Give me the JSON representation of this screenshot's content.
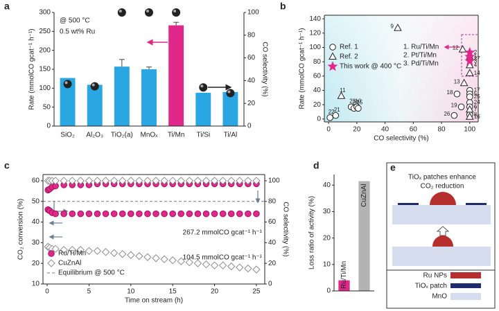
{
  "chart_data": [
    {
      "label": "a",
      "type": "bar",
      "categories": [
        "SiO₂",
        "Al₂O₃",
        "TiO₂(a)",
        "MnOₓ",
        "Ti/Mn",
        "Ti/Si",
        "Ti/Al"
      ],
      "category_label_colors": [
        "#222222",
        "#222222",
        "#222222",
        "#222222",
        "#e0288a",
        "#222222",
        "#222222"
      ],
      "series": [
        {
          "values": [
            127,
            109,
            157,
            150,
            266,
            88,
            90
          ],
          "errors": [
            0,
            0,
            19,
            6,
            8,
            0,
            0
          ],
          "colors": [
            "#2aa7e2",
            "#2aa7e2",
            "#2aa7e2",
            "#2aa7e2",
            "#e0288a",
            "#2aa7e2",
            "#2aa7e2"
          ]
        },
        {
          "type": "scatter",
          "axis": "y2",
          "values": [
            37,
            35,
            100,
            100,
            100,
            34,
            29
          ],
          "color": "#222222"
        }
      ],
      "ylim": [
        0,
        300
      ],
      "yticks": [
        0,
        50,
        100,
        150,
        200,
        250,
        300
      ],
      "y2lim": [
        0,
        100
      ],
      "y2ticks": [
        0,
        20,
        40,
        60,
        80,
        100
      ],
      "ylabel": "Rate (mmolCO gcat⁻¹ h⁻¹)",
      "y2label": "CO selectivity (%)",
      "annotations": [
        {
          "text": "@ 500 °C"
        },
        {
          "text": "0.5 wt% Ru"
        }
      ]
    },
    {
      "label": "b",
      "type": "scatter",
      "series": [
        {
          "name": "Ref. 1",
          "marker": "circle",
          "filled": false,
          "color": "#222222",
          "x": [
            1,
            5,
            16,
            18,
            20,
            21,
            91,
            94,
            89,
            100,
            100,
            100,
            100,
            100,
            100,
            100
          ],
          "values": [
            2,
            5,
            17,
            15,
            17,
            15,
            35,
            17,
            5,
            40,
            35,
            31,
            23,
            17,
            6,
            84
          ],
          "point_labels": [
            "22",
            "21",
            "23",
            "20",
            "10",
            "15",
            "18",
            "19",
            "26",
            "17",
            "5",
            "25",
            "24",
            "6",
            "8",
            "27"
          ]
        },
        {
          "name": "Ref. 2",
          "marker": "triangle",
          "filled": false,
          "color": "#222222",
          "x": [
            9,
            49,
            95,
            96,
            100,
            100,
            100,
            100
          ],
          "values": [
            32,
            127,
            97,
            50,
            64,
            75,
            13,
            3
          ],
          "point_labels": [
            "11",
            "9",
            "12",
            "13",
            "14",
            "4",
            "7",
            "16"
          ]
        },
        {
          "name": "This work @ 400 °C",
          "marker": "star",
          "filled": true,
          "color": "#e0288a",
          "x": [
            100,
            100,
            100
          ],
          "values": [
            93,
            87,
            81
          ],
          "point_labels": [
            "2",
            "1",
            "3"
          ]
        }
      ],
      "xlim": [
        -3,
        106
      ],
      "xticks": [
        0,
        20,
        40,
        60,
        80,
        100
      ],
      "ylim": [
        -4,
        145
      ],
      "yticks": [
        0,
        20,
        40,
        60,
        80,
        100,
        120,
        140
      ],
      "xlabel": "CO selectivity (%)",
      "ylabel": "Rate (mmolCO gcat⁻¹ h⁻¹)",
      "legend": "center left",
      "annotations": [
        {
          "text": "1. Ru/Ti/Mn",
          "color": "#e0288a"
        },
        {
          "text": "2. Pt/Ti/Mn",
          "color": "#e0288a"
        },
        {
          "text": "3. Pd/Ti/Mn",
          "color": "#e0288a"
        }
      ]
    },
    {
      "label": "c",
      "type": "scatter",
      "x": [
        0.1,
        0.3,
        0.6,
        1,
        2,
        3,
        4,
        5,
        6,
        7,
        8,
        9,
        10,
        11,
        12,
        13,
        14,
        15,
        16,
        17,
        18,
        19,
        20,
        21,
        22,
        23,
        24,
        25
      ],
      "series": [
        {
          "name": "Ru/Ti/Mn",
          "marker": "circle",
          "filled": true,
          "color": "#e0288a",
          "values": [
            46,
            45.5,
            44.5,
            44,
            44,
            44,
            44,
            44,
            44,
            44,
            44,
            44,
            44,
            44,
            44,
            44,
            44,
            44,
            44,
            44,
            44,
            44,
            44,
            44,
            44,
            44,
            44,
            44
          ],
          "selectivity": [
            91,
            92,
            94,
            95,
            96,
            96,
            96,
            96,
            97,
            97,
            97,
            97,
            97,
            97,
            97,
            97,
            97,
            97,
            97,
            97,
            97,
            97,
            97,
            97,
            97,
            97,
            97,
            97
          ]
        },
        {
          "name": "CuZnAl",
          "marker": "diamond",
          "filled": false,
          "color": "#8c8c8c",
          "values": [
            28,
            27.5,
            27,
            27,
            26.5,
            26.5,
            26.5,
            26,
            26,
            25.5,
            25,
            24.5,
            24,
            23.5,
            23,
            22.5,
            22,
            21.5,
            21,
            20.5,
            20,
            19.5,
            19,
            19,
            18.5,
            18,
            17.5,
            17
          ],
          "selectivity": [
            100,
            100,
            100,
            100,
            100,
            100,
            100,
            100,
            100,
            100,
            100,
            100,
            100,
            100,
            100,
            100,
            100,
            100,
            100,
            100,
            100,
            100,
            100,
            100,
            100,
            100,
            100,
            100
          ]
        }
      ],
      "reference_lines": [
        {
          "name": "Equilibrium @ 500 °C",
          "value": 50,
          "style": "dashed",
          "color": "#777777"
        }
      ],
      "xlim": [
        -0.5,
        26
      ],
      "xticks": [
        0,
        5,
        10,
        15,
        20,
        25
      ],
      "ylim": [
        10,
        63
      ],
      "yticks": [
        10,
        20,
        30,
        40,
        50,
        60
      ],
      "y2lim": [
        0,
        106
      ],
      "y2ticks": [
        0,
        20,
        40,
        60,
        80,
        100
      ],
      "xlabel": "Time on stream (h)",
      "ylabel": "CO₂ conversion (%)",
      "y2label": "CO selectivity (%)",
      "legend": "lower left",
      "annotations": [
        {
          "text": "267.2 mmolCO gcat⁻¹ h⁻¹",
          "color": "#e0288a"
        },
        {
          "text": "104.5 mmolCO gcat⁻¹ h⁻¹",
          "color": "#8c8c8c"
        }
      ]
    },
    {
      "label": "d",
      "type": "bar",
      "categories": [
        "Ru/Ti/Mn",
        "CuZnAl"
      ],
      "category_label_colors": [
        "#e0288a",
        "#ffffff"
      ],
      "category_label_position": "in-bar",
      "series": [
        {
          "values": [
            4,
            41.5
          ],
          "colors": [
            "#e0288a",
            "#b3b3b3"
          ]
        }
      ],
      "ylim": [
        0,
        44
      ],
      "yticks": [
        0,
        10,
        20,
        30,
        40
      ],
      "ylabel": "Loss ratio of activity (%)"
    }
  ],
  "diagram": {
    "label": "e",
    "title_lines": [
      "TiOₓ patches enhance",
      "CO₂ reduction"
    ],
    "legend": [
      "Ru NPs",
      "TiOₓ patch",
      "MnO"
    ]
  }
}
